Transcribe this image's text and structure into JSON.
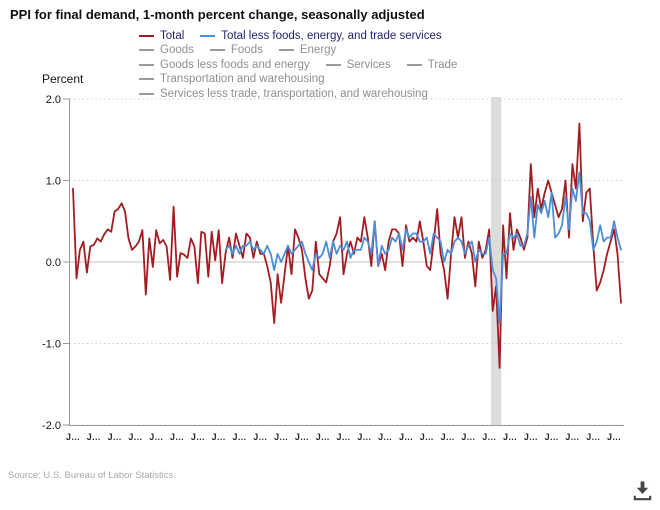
{
  "title": "PPI for final demand, 1-month percent change, seasonally adjusted",
  "y_axis": {
    "label": "Percent",
    "ticks": [
      "2.0",
      "1.0",
      "0.0",
      "-1.0",
      "-2.0"
    ]
  },
  "x_axis": {
    "tick_label_text": "J…",
    "first_tick_month": "2010-01",
    "last_tick_month": "2023-01",
    "tick_interval_months": 6
  },
  "legend": {
    "rows": [
      [
        {
          "label": "Total",
          "state": "active",
          "color": "#a21d21"
        },
        {
          "label": "Total less foods, energy, and trade services",
          "state": "active",
          "color": "#4c8fd6"
        }
      ],
      [
        {
          "label": "Goods",
          "state": "inactive"
        },
        {
          "label": "Foods",
          "state": "inactive"
        },
        {
          "label": "Energy",
          "state": "inactive"
        }
      ],
      [
        {
          "label": "Goods less foods and energy",
          "state": "inactive"
        },
        {
          "label": "Services",
          "state": "inactive"
        },
        {
          "label": "Trade",
          "state": "inactive"
        }
      ],
      [
        {
          "label": "Transportation and warehousing",
          "state": "inactive"
        }
      ],
      [
        {
          "label": "Services less trade, transportation, and warehousing",
          "state": "inactive"
        }
      ]
    ]
  },
  "source": "Source: U.S. Bureau of Labor Statistics.",
  "colors": {
    "total_line": "#a21d21",
    "core_line": "#4c8fd6",
    "active_legend_text": "#221f72",
    "inactive_legend": "#8f8f8f",
    "grid_dotted": "#cccccc",
    "zero_line": "#c2c2c2",
    "axis": "#9a9a9a",
    "recession_band": "#dcdcdc",
    "download_icon": "#454545"
  },
  "chart_data": {
    "type": "line",
    "title": "PPI for final demand, 1-month percent change, seasonally adjusted",
    "ylabel": "Percent",
    "ylim": [
      -2.0,
      2.0
    ],
    "gridlines": [
      2.0,
      1.0,
      0.0,
      -1.0,
      -2.0
    ],
    "grid": "dotted-horizontal",
    "legend_position": "top",
    "x_unit": "month",
    "x_start_month": "2010-01",
    "x_end_month": "2023-03",
    "recession_band": {
      "start_month": "2020-02",
      "end_month": "2020-04"
    },
    "series": [
      {
        "name": "Total",
        "color": "#a21d21",
        "data_name": "total-line",
        "start_month": "2010-01",
        "values": [
          0.9,
          -0.2,
          0.15,
          0.25,
          -0.13,
          0.19,
          0.21,
          0.29,
          0.25,
          0.34,
          0.4,
          0.37,
          0.62,
          0.65,
          0.72,
          0.62,
          0.29,
          0.15,
          0.19,
          0.25,
          0.39,
          -0.4,
          0.29,
          -0.06,
          0.39,
          0.23,
          0.27,
          0.19,
          -0.22,
          0.68,
          -0.18,
          0.11,
          0.09,
          0.05,
          0.29,
          0.19,
          -0.26,
          0.37,
          0.35,
          -0.18,
          0.37,
          0.02,
          0.39,
          -0.26,
          0.11,
          0.3,
          0.05,
          0.35,
          0.2,
          0.05,
          0.35,
          0.3,
          0.05,
          0.25,
          0.1,
          0.1,
          -0.05,
          -0.25,
          -0.75,
          -0.15,
          -0.5,
          -0.15,
          0.2,
          -0.15,
          0.4,
          0.3,
          0.15,
          -0.2,
          -0.45,
          -0.35,
          0.25,
          -0.15,
          -0.2,
          -0.25,
          -0.05,
          0.25,
          0.35,
          0.55,
          -0.15,
          0.1,
          0.25,
          0.1,
          0.3,
          0.25,
          0.55,
          0.3,
          -0.05,
          0.5,
          -0.05,
          0.1,
          -0.1,
          0.25,
          0.4,
          0.4,
          0.35,
          -0.05,
          0.45,
          0.25,
          0.3,
          0.25,
          0.5,
          0.25,
          -0.05,
          -0.1,
          0.25,
          0.65,
          0.1,
          -0.1,
          -0.45,
          0.1,
          0.55,
          0.3,
          0.55,
          0.05,
          0.25,
          0.1,
          -0.3,
          0.25,
          0.05,
          0.15,
          0.4,
          -0.6,
          -0.3,
          -1.3,
          0.45,
          -0.2,
          0.6,
          0.15,
          0.4,
          0.3,
          0.15,
          0.3,
          1.2,
          0.55,
          0.9,
          0.65,
          0.85,
          1.0,
          0.85,
          0.7,
          0.55,
          0.65,
          1.0,
          0.3,
          1.2,
          0.9,
          1.7,
          0.5,
          0.85,
          0.9,
          0.2,
          -0.35,
          -0.25,
          -0.1,
          0.1,
          0.25,
          0.4,
          0.1,
          -0.5
        ]
      },
      {
        "name": "Total less foods, energy, and trade services",
        "color": "#4c8fd6",
        "data_name": "core-line",
        "start_month": "2013-09",
        "values": [
          0.15,
          0.2,
          0.1,
          0.2,
          0.1,
          0.2,
          0.2,
          0.25,
          0.15,
          0.2,
          0.15,
          0.1,
          0.2,
          0.1,
          -0.1,
          0.1,
          0.0,
          0.1,
          0.2,
          0.1,
          0.15,
          0.2,
          0.25,
          0.1,
          0.0,
          -0.1,
          0.1,
          0.05,
          0.1,
          0.25,
          0.05,
          0.25,
          0.1,
          0.2,
          0.15,
          0.25,
          0.05,
          0.15,
          0.15,
          0.15,
          0.3,
          0.25,
          0.1,
          0.5,
          -0.05,
          0.2,
          0.1,
          0.15,
          0.3,
          0.25,
          0.35,
          0.15,
          0.4,
          0.3,
          0.35,
          0.35,
          0.25,
          0.25,
          0.3,
          0.1,
          0.35,
          0.3,
          0.25,
          0.0,
          0.15,
          0.1,
          0.25,
          0.3,
          0.25,
          0.1,
          0.2,
          0.25,
          0.0,
          0.15,
          0.1,
          0.1,
          0.3,
          -0.1,
          -0.2,
          -0.75,
          0.1,
          0.1,
          0.35,
          0.3,
          0.35,
          0.2,
          0.2,
          0.35,
          0.8,
          0.3,
          0.7,
          0.6,
          0.75,
          0.55,
          0.85,
          0.3,
          0.35,
          0.45,
          0.8,
          0.4,
          0.9,
          0.75,
          1.1,
          0.6,
          0.6,
          0.5,
          0.15,
          0.25,
          0.45,
          0.25,
          0.3,
          0.3,
          0.5,
          0.3,
          0.15
        ]
      }
    ]
  }
}
